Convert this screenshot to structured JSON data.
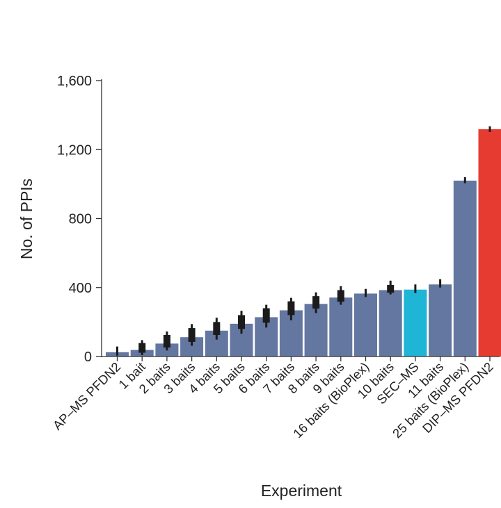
{
  "chart_data": {
    "type": "bar",
    "xlabel": "Experiment",
    "ylabel": "No. of PPIs",
    "ylim": [
      0,
      1600
    ],
    "yticks": [
      0,
      400,
      800,
      1200,
      1600
    ],
    "ytick_labels": [
      "0",
      "400",
      "800",
      "1,200",
      "1,600"
    ],
    "grid": false,
    "legend": "none",
    "categories": [
      "AP–MS PFDN2",
      "1 bait",
      "2 baits",
      "3 baits",
      "4 baits",
      "5 baits",
      "6 baits",
      "7 baits",
      "8 baits",
      "9 baits",
      "16 baits (BioPlex)",
      "10 baits",
      "SEC–MS",
      "11 baits",
      "25 baits (BioPlex)",
      "DIP–MS PFDN2"
    ],
    "values": [
      25,
      38,
      75,
      112,
      150,
      190,
      228,
      268,
      305,
      342,
      365,
      385,
      388,
      418,
      1020,
      1318
    ],
    "error_low": [
      5,
      8,
      35,
      62,
      98,
      132,
      168,
      210,
      252,
      300,
      345,
      360,
      368,
      400,
      1005,
      1302
    ],
    "error_high": [
      58,
      95,
      145,
      188,
      225,
      265,
      300,
      340,
      372,
      408,
      392,
      440,
      418,
      448,
      1040,
      1335
    ],
    "box_low": [
      null,
      22,
      52,
      85,
      125,
      160,
      196,
      240,
      278,
      318,
      null,
      370,
      null,
      null,
      null,
      null
    ],
    "box_high": [
      null,
      78,
      125,
      165,
      200,
      240,
      280,
      320,
      350,
      385,
      null,
      415,
      null,
      null,
      null,
      null
    ],
    "colors": [
      "#6477a0",
      "#6477a0",
      "#6477a0",
      "#6477a0",
      "#6477a0",
      "#6477a0",
      "#6477a0",
      "#6477a0",
      "#6477a0",
      "#6477a0",
      "#6477a0",
      "#6477a0",
      "#1fb5d6",
      "#6477a0",
      "#6477a0",
      "#e63b30"
    ],
    "error_color": "#1b1b1b",
    "axis_color": "#333333"
  }
}
